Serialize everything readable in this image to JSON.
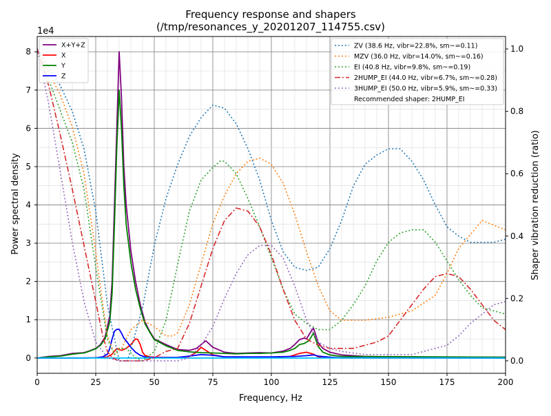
{
  "chart_data": {
    "type": "line",
    "title": "Frequency response and shapers",
    "subtitle": "(/tmp/resonances_y_20201207_114755.csv)",
    "xlabel": "Frequency, Hz",
    "ylabel_left": "Power spectral density",
    "ylabel_right": "Shaper vibration reduction (ratio)",
    "left_exponent": "1e4",
    "xlim": [
      0,
      200
    ],
    "ylim_left": [
      -4000,
      84000
    ],
    "ylim_right": [
      -0.04,
      1.04
    ],
    "x_ticks": [
      0,
      25,
      50,
      75,
      100,
      125,
      150,
      175,
      200
    ],
    "y_left_ticks": [
      0,
      10000,
      20000,
      30000,
      40000,
      50000,
      60000,
      70000,
      80000
    ],
    "y_left_tick_labels": [
      "0",
      "1",
      "2",
      "3",
      "4",
      "5",
      "6",
      "7",
      "8"
    ],
    "y_right_ticks": [
      0.0,
      0.2,
      0.4,
      0.6,
      0.8,
      1.0
    ],
    "y_right_tick_labels": [
      "0.0",
      "0.2",
      "0.4",
      "0.6",
      "0.8",
      "1.0"
    ],
    "grid": true,
    "psd_legend_position": "upper-left",
    "shaper_legend_position": "upper-right",
    "recommended_shaper_text": "Recommended shaper: 2HUMP_EI",
    "psd_series": [
      {
        "name": "X+Y+Z",
        "color": "#800080",
        "style": "solid",
        "x": [
          0,
          5,
          10,
          15,
          18,
          20,
          22,
          25,
          27,
          29,
          31,
          32,
          33,
          34,
          35,
          36,
          37,
          38,
          40,
          42,
          44,
          46,
          48,
          50,
          55,
          60,
          65,
          68,
          70,
          72,
          75,
          80,
          85,
          90,
          95,
          100,
          105,
          108,
          110,
          112,
          114,
          115,
          116,
          117,
          118,
          120,
          122,
          125,
          130,
          140,
          150,
          175,
          200
        ],
        "y": [
          0,
          400,
          600,
          1200,
          1300,
          1400,
          1800,
          2500,
          3500,
          5500,
          11000,
          20000,
          40000,
          60000,
          80000,
          68000,
          50000,
          40000,
          28000,
          20000,
          14000,
          9500,
          7000,
          5000,
          3500,
          2200,
          2000,
          2500,
          3500,
          4500,
          2800,
          1500,
          1200,
          1300,
          1400,
          1300,
          1800,
          2500,
          3500,
          4800,
          5200,
          5000,
          6000,
          7000,
          7800,
          4000,
          2500,
          1500,
          800,
          400,
          300,
          200,
          200
        ]
      },
      {
        "name": "X",
        "color": "#ff0000",
        "style": "solid",
        "x": [
          0,
          10,
          20,
          28,
          30,
          32,
          34,
          36,
          38,
          40,
          42,
          43,
          44,
          45,
          46,
          48,
          50,
          55,
          60,
          65,
          68,
          70,
          72,
          75,
          80,
          100,
          108,
          112,
          115,
          118,
          120,
          125,
          130,
          150,
          200
        ],
        "y": [
          0,
          0,
          0,
          100,
          300,
          1000,
          2500,
          2000,
          2500,
          3500,
          5000,
          4800,
          3500,
          1500,
          700,
          300,
          200,
          150,
          150,
          400,
          1500,
          2800,
          2000,
          800,
          300,
          200,
          400,
          1200,
          1500,
          1000,
          300,
          100,
          0,
          0,
          0
        ],
        "label_is_shown": true
      },
      {
        "name": "Y",
        "color": "#008000",
        "style": "solid",
        "x": [
          0,
          5,
          10,
          15,
          18,
          20,
          22,
          25,
          27,
          29,
          31,
          32,
          33,
          34,
          35,
          36,
          37,
          38,
          40,
          42,
          44,
          46,
          48,
          50,
          55,
          60,
          65,
          70,
          75,
          80,
          85,
          90,
          95,
          100,
          105,
          108,
          110,
          112,
          114,
          116,
          118,
          120,
          122,
          125,
          130,
          200
        ],
        "y": [
          0,
          300,
          500,
          1000,
          1200,
          1300,
          1700,
          2400,
          3300,
          5000,
          9500,
          17000,
          35000,
          55000,
          70000,
          60000,
          45000,
          35000,
          25000,
          18000,
          13000,
          9000,
          6800,
          4800,
          3200,
          2000,
          1600,
          1400,
          1300,
          1200,
          1100,
          1200,
          1200,
          1300,
          1500,
          2000,
          2500,
          3500,
          3800,
          4500,
          6500,
          3000,
          1500,
          800,
          400,
          200
        ]
      },
      {
        "name": "Z",
        "color": "#0000ff",
        "style": "solid",
        "x": [
          0,
          20,
          25,
          28,
          30,
          31,
          32,
          33,
          34,
          35,
          36,
          37,
          38,
          40,
          42,
          44,
          46,
          48,
          50,
          55,
          60,
          65,
          70,
          75,
          80,
          100,
          110,
          115,
          118,
          120,
          125,
          130,
          200
        ],
        "y": [
          0,
          0,
          50,
          300,
          1000,
          2500,
          5000,
          7000,
          7500,
          7500,
          6500,
          5200,
          4500,
          2800,
          1500,
          700,
          300,
          150,
          100,
          100,
          150,
          500,
          900,
          700,
          300,
          300,
          400,
          600,
          800,
          500,
          200,
          50,
          0
        ]
      },
      {
        "name": "cyan",
        "color": "#00bfff",
        "style": "solid",
        "x": [
          0,
          20,
          30,
          40,
          50,
          60,
          70,
          80,
          100,
          120,
          130,
          150,
          200
        ],
        "y": [
          0,
          0,
          0,
          0,
          0,
          0,
          0,
          0,
          0,
          0,
          0,
          0,
          0
        ],
        "label_is_shown": false
      }
    ],
    "shaper_series": [
      {
        "name": "ZV (38.6 Hz, vibr=22.8%, sm~=0.11)",
        "color": "#1f77b4",
        "style": "dotted",
        "x": [
          0,
          10,
          15,
          20,
          25,
          30,
          35,
          38.6,
          45,
          50,
          55,
          60,
          65,
          70,
          75,
          80,
          85,
          90,
          95,
          100,
          105,
          110,
          115,
          120,
          125,
          130,
          135,
          140,
          145,
          150,
          155,
          160,
          165,
          170,
          175,
          180,
          185,
          190,
          195,
          200
        ],
        "y": [
          1.0,
          0.88,
          0.8,
          0.68,
          0.48,
          0.18,
          0.0,
          0.0,
          0.17,
          0.37,
          0.52,
          0.63,
          0.72,
          0.78,
          0.82,
          0.81,
          0.76,
          0.68,
          0.58,
          0.45,
          0.35,
          0.3,
          0.29,
          0.3,
          0.36,
          0.45,
          0.56,
          0.63,
          0.66,
          0.68,
          0.68,
          0.64,
          0.58,
          0.5,
          0.43,
          0.4,
          0.38,
          0.38,
          0.38,
          0.39
        ]
      },
      {
        "name": "MZV (36.0 Hz, vibr=14.0%, sm~=0.16)",
        "color": "#ff7f0e",
        "style": "dotted",
        "x": [
          0,
          10,
          15,
          20,
          25,
          28,
          30,
          33,
          36,
          40,
          45,
          50,
          55,
          58,
          60,
          65,
          70,
          75,
          80,
          85,
          90,
          95,
          100,
          105,
          110,
          115,
          120,
          125,
          130,
          140,
          150,
          160,
          170,
          175,
          180,
          190,
          200
        ],
        "y": [
          1.0,
          0.85,
          0.75,
          0.6,
          0.35,
          0.18,
          0.08,
          0.02,
          0.04,
          0.1,
          0.13,
          0.11,
          0.08,
          0.08,
          0.09,
          0.18,
          0.31,
          0.44,
          0.53,
          0.6,
          0.64,
          0.65,
          0.63,
          0.57,
          0.47,
          0.35,
          0.24,
          0.16,
          0.13,
          0.13,
          0.14,
          0.16,
          0.21,
          0.28,
          0.36,
          0.45,
          0.42
        ]
      },
      {
        "name": "EI (40.8 Hz, vibr=9.8%, sm~=0.19)",
        "color": "#2ca02c",
        "style": "dotted",
        "x": [
          0,
          10,
          15,
          20,
          25,
          30,
          33,
          35,
          38,
          42,
          45,
          50,
          55,
          60,
          65,
          70,
          75,
          78,
          80,
          85,
          90,
          95,
          100,
          105,
          110,
          115,
          120,
          125,
          130,
          135,
          140,
          145,
          150,
          155,
          160,
          165,
          170,
          175,
          180,
          185,
          190,
          195,
          200
        ],
        "y": [
          1.0,
          0.8,
          0.7,
          0.55,
          0.3,
          0.07,
          0.02,
          0.04,
          0.04,
          0.01,
          0.0,
          0.03,
          0.13,
          0.31,
          0.48,
          0.58,
          0.62,
          0.64,
          0.64,
          0.6,
          0.52,
          0.43,
          0.33,
          0.23,
          0.15,
          0.12,
          0.1,
          0.1,
          0.13,
          0.18,
          0.24,
          0.32,
          0.38,
          0.41,
          0.42,
          0.42,
          0.38,
          0.32,
          0.26,
          0.21,
          0.17,
          0.16,
          0.15
        ]
      },
      {
        "name": "2HUMP_EI (44.0 Hz, vibr=6.7%, sm~=0.28)",
        "color": "#d62728",
        "style": "dashdot",
        "x": [
          0,
          5,
          10,
          15,
          20,
          25,
          28,
          30,
          32,
          35,
          40,
          45,
          50,
          55,
          60,
          65,
          70,
          75,
          80,
          85,
          90,
          95,
          100,
          105,
          110,
          115,
          120,
          125,
          130,
          135,
          140,
          145,
          150,
          155,
          160,
          165,
          170,
          175,
          180,
          185,
          190,
          195,
          200
        ],
        "y": [
          1.0,
          0.88,
          0.72,
          0.55,
          0.37,
          0.19,
          0.08,
          0.03,
          0.01,
          0.0,
          0.0,
          0.0,
          0.01,
          0.03,
          0.04,
          0.12,
          0.24,
          0.36,
          0.45,
          0.49,
          0.48,
          0.43,
          0.34,
          0.23,
          0.13,
          0.07,
          0.05,
          0.04,
          0.04,
          0.04,
          0.05,
          0.06,
          0.08,
          0.13,
          0.18,
          0.23,
          0.27,
          0.28,
          0.27,
          0.23,
          0.18,
          0.13,
          0.1
        ]
      },
      {
        "name": "3HUMP_EI (50.0 Hz, vibr=5.9%, sm~=0.33)",
        "color": "#9467bd",
        "style": "dotted",
        "x": [
          0,
          5,
          10,
          15,
          20,
          25,
          30,
          35,
          40,
          45,
          50,
          55,
          60,
          65,
          70,
          75,
          80,
          85,
          90,
          95,
          100,
          105,
          110,
          115,
          120,
          125,
          130,
          140,
          150,
          160,
          170,
          175,
          180,
          185,
          190,
          195,
          200
        ],
        "y": [
          1.0,
          0.82,
          0.6,
          0.38,
          0.19,
          0.06,
          0.01,
          0.0,
          0.0,
          0.0,
          0.0,
          0.0,
          0.0,
          0.01,
          0.05,
          0.11,
          0.2,
          0.28,
          0.34,
          0.37,
          0.37,
          0.33,
          0.24,
          0.13,
          0.06,
          0.04,
          0.03,
          0.02,
          0.02,
          0.02,
          0.04,
          0.05,
          0.08,
          0.12,
          0.15,
          0.18,
          0.19
        ]
      }
    ]
  }
}
